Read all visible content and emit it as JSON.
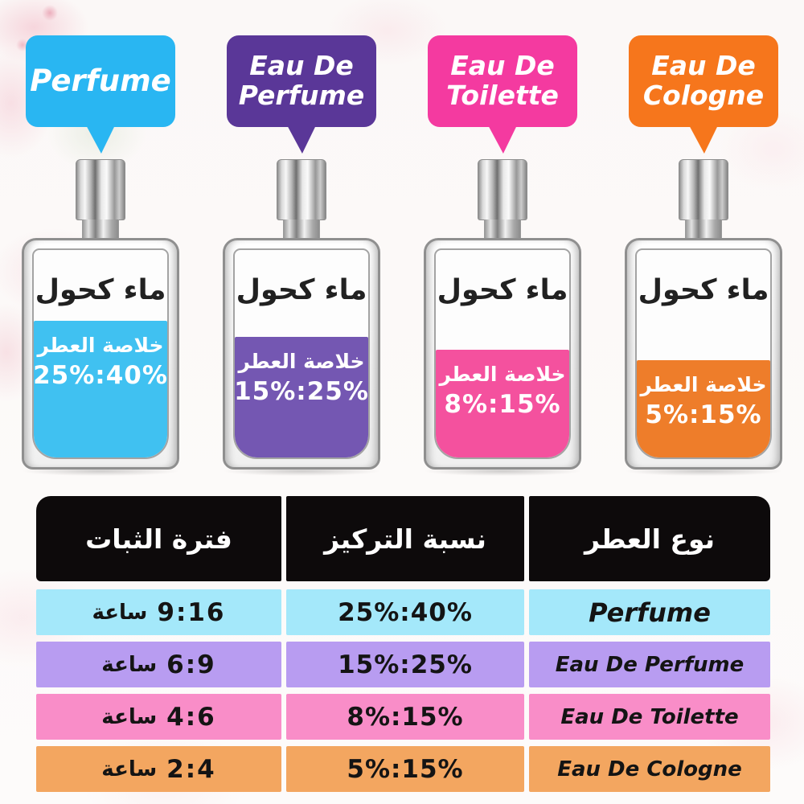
{
  "bubbles": [
    {
      "lines": [
        "Perfume"
      ],
      "color": "#29b6f2"
    },
    {
      "lines": [
        "Eau De",
        "Perfume"
      ],
      "color": "#5a3798"
    },
    {
      "lines": [
        "Eau De",
        "Toilette"
      ],
      "color": "#f43aa0"
    },
    {
      "lines": [
        "Eau De",
        "Cologne"
      ],
      "color": "#f6761c"
    }
  ],
  "bottles": [
    {
      "alcohol_label": "ماء كحول",
      "essence_label": "خلاصة العطر",
      "ratio": "25%:40%",
      "liquid_color": "#40c1f1",
      "fill_height": "66%"
    },
    {
      "alcohol_label": "ماء كحول",
      "essence_label": "خلاصة العطر",
      "ratio": "15%:25%",
      "liquid_color": "#7457b2",
      "fill_height": "58%"
    },
    {
      "alcohol_label": "ماء كحول",
      "essence_label": "خلاصة العطر",
      "ratio": "8%:15%",
      "liquid_color": "#f4519e",
      "fill_height": "52%"
    },
    {
      "alcohol_label": "ماء كحول",
      "essence_label": "خلاصة العطر",
      "ratio": "5%:15%",
      "liquid_color": "#ee7d2a",
      "fill_height": "47%"
    }
  ],
  "table": {
    "header_bg": "#0d0a0b",
    "columns": [
      {
        "label": "فترة الثبات"
      },
      {
        "label": "نسبة التركيز"
      },
      {
        "label": "نوع العطر"
      }
    ],
    "rows": [
      {
        "duration": "9:16",
        "unit": "ساعة",
        "ratio": "25%:40%",
        "type": "Perfume",
        "color": "#a4e8fa"
      },
      {
        "duration": "6:9",
        "unit": "ساعة",
        "ratio": "15%:25%",
        "type": "Eau De Perfume",
        "color": "#b89cf1"
      },
      {
        "duration": "4:6",
        "unit": "ساعة",
        "ratio": "8%:15%",
        "type": "Eau De Toilette",
        "color": "#f98dc8"
      },
      {
        "duration": "2:4",
        "unit": "ساعة",
        "ratio": "5%:15%",
        "type": "Eau De Cologne",
        "color": "#f3a660"
      }
    ]
  }
}
